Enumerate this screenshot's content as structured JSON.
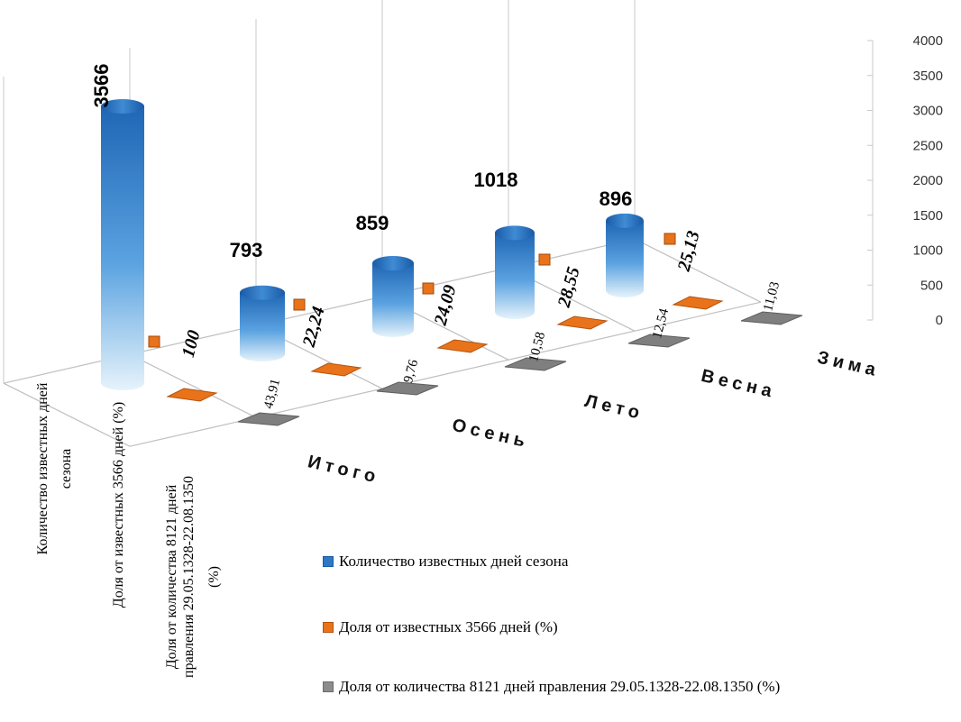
{
  "chart_data": {
    "type": "bar",
    "title": "",
    "categories": [
      "Итого",
      "Осень",
      "Лето",
      "Весна",
      "Зима"
    ],
    "series": [
      {
        "name": "Количество известных дней сезона",
        "color": "#2e78c4",
        "values": [
          3566,
          793,
          859,
          1018,
          896
        ],
        "labels": [
          "3566",
          "793",
          "859",
          "1018",
          "896"
        ]
      },
      {
        "name": "Доля от известных 3566 дней (%)",
        "color": "#e8731a",
        "values": [
          100,
          22.24,
          24.09,
          28.55,
          25.13
        ],
        "labels": [
          "100",
          "22,24",
          "24,09",
          "28,55",
          "25,13"
        ]
      },
      {
        "name": "Доля от количества 8121 дней правления 29.05.1328-22.08.1350 (%)",
        "color": "#8c8c8c",
        "values": [
          43.91,
          9.76,
          10.58,
          12.54,
          11.03
        ],
        "labels": [
          "43,91",
          "9,76",
          "10,58",
          "12,54",
          "11,03"
        ]
      }
    ],
    "series_axis_labels": [
      "Количество известных дней сезона",
      "Доля от известных 3566 дней (%)",
      "Доля от количества 8121 дней правления 29.05.1328-22.08.1350 (%)"
    ],
    "ylim": [
      0,
      4000
    ],
    "yticks": [
      0,
      500,
      1000,
      1500,
      2000,
      2500,
      3000,
      3500,
      4000
    ],
    "grid": false,
    "legend_position": "bottom-right"
  },
  "legend": {
    "item1": "Количество известных дней сезона",
    "item2": "Доля от известных 3566 дней (%)",
    "item3": "Доля от количества 8121 дней правления 29.05.1328-22.08.1350 (%)"
  }
}
